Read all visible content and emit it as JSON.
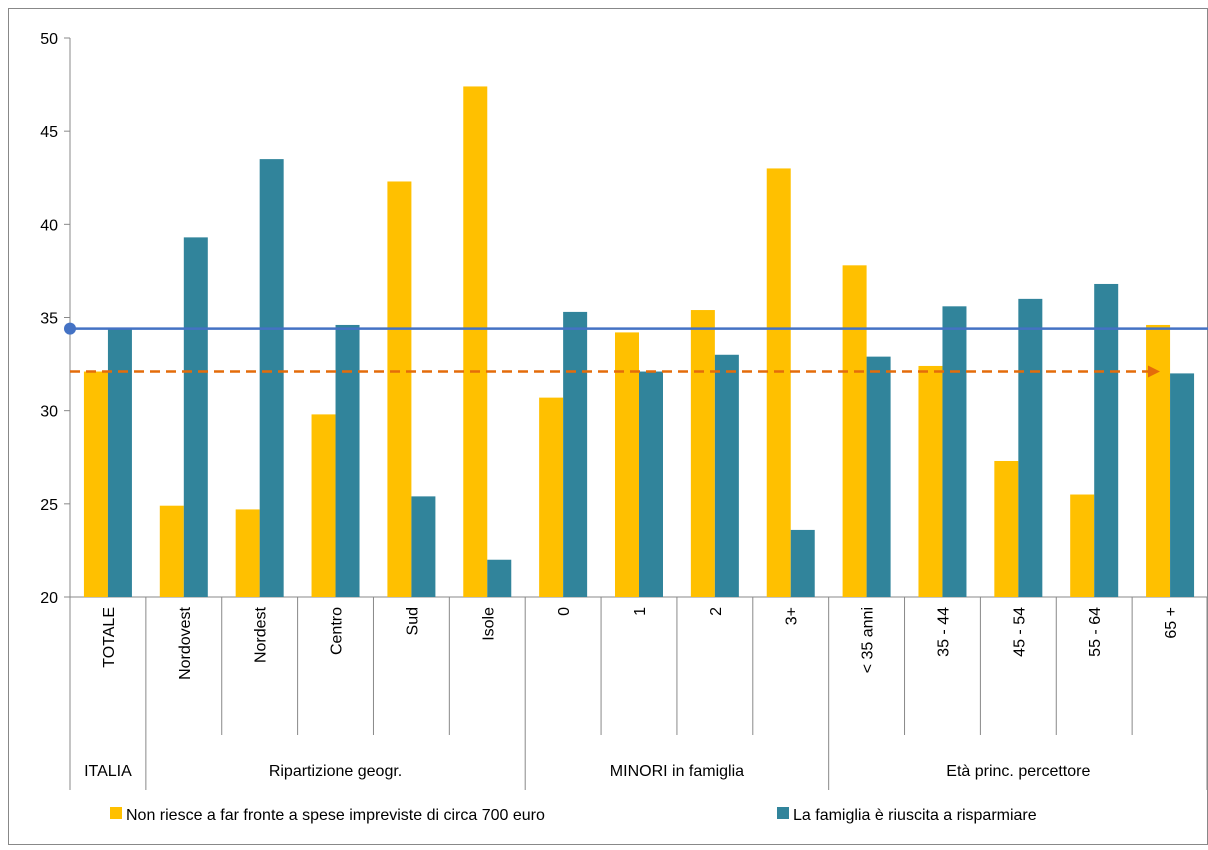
{
  "chart_data": {
    "type": "bar",
    "groups": [
      {
        "name": "ITALIA",
        "categories": [
          "TOTALE"
        ]
      },
      {
        "name": "Ripartizione geogr.",
        "categories": [
          "Nordovest",
          "Nordest",
          "Centro",
          "Sud",
          "Isole"
        ]
      },
      {
        "name": "MINORI in famiglia",
        "categories": [
          "0",
          "1",
          "2",
          "3+"
        ]
      },
      {
        "name": "Età princ. percettore",
        "categories": [
          "< 35 anni",
          "35 - 44",
          "45 - 54",
          "55 - 64",
          "65 +"
        ]
      }
    ],
    "series": [
      {
        "name": "Non riesce a far fronte a spese impreviste di circa 700 euro",
        "color": "#ffc000",
        "values": [
          32.1,
          24.9,
          24.7,
          29.8,
          42.3,
          47.4,
          30.7,
          34.2,
          35.4,
          43.0,
          37.8,
          32.4,
          27.3,
          25.5,
          34.6
        ]
      },
      {
        "name": "La famiglia è riuscita a risparmiare",
        "color": "#31849b",
        "values": [
          34.4,
          39.3,
          43.5,
          34.6,
          25.4,
          22.0,
          35.3,
          32.1,
          33.0,
          23.6,
          32.9,
          35.6,
          36.0,
          36.8,
          32.0
        ]
      }
    ],
    "ylim": [
      20,
      50
    ],
    "yticks": [
      20,
      25,
      30,
      35,
      40,
      45,
      50
    ]
  }
}
